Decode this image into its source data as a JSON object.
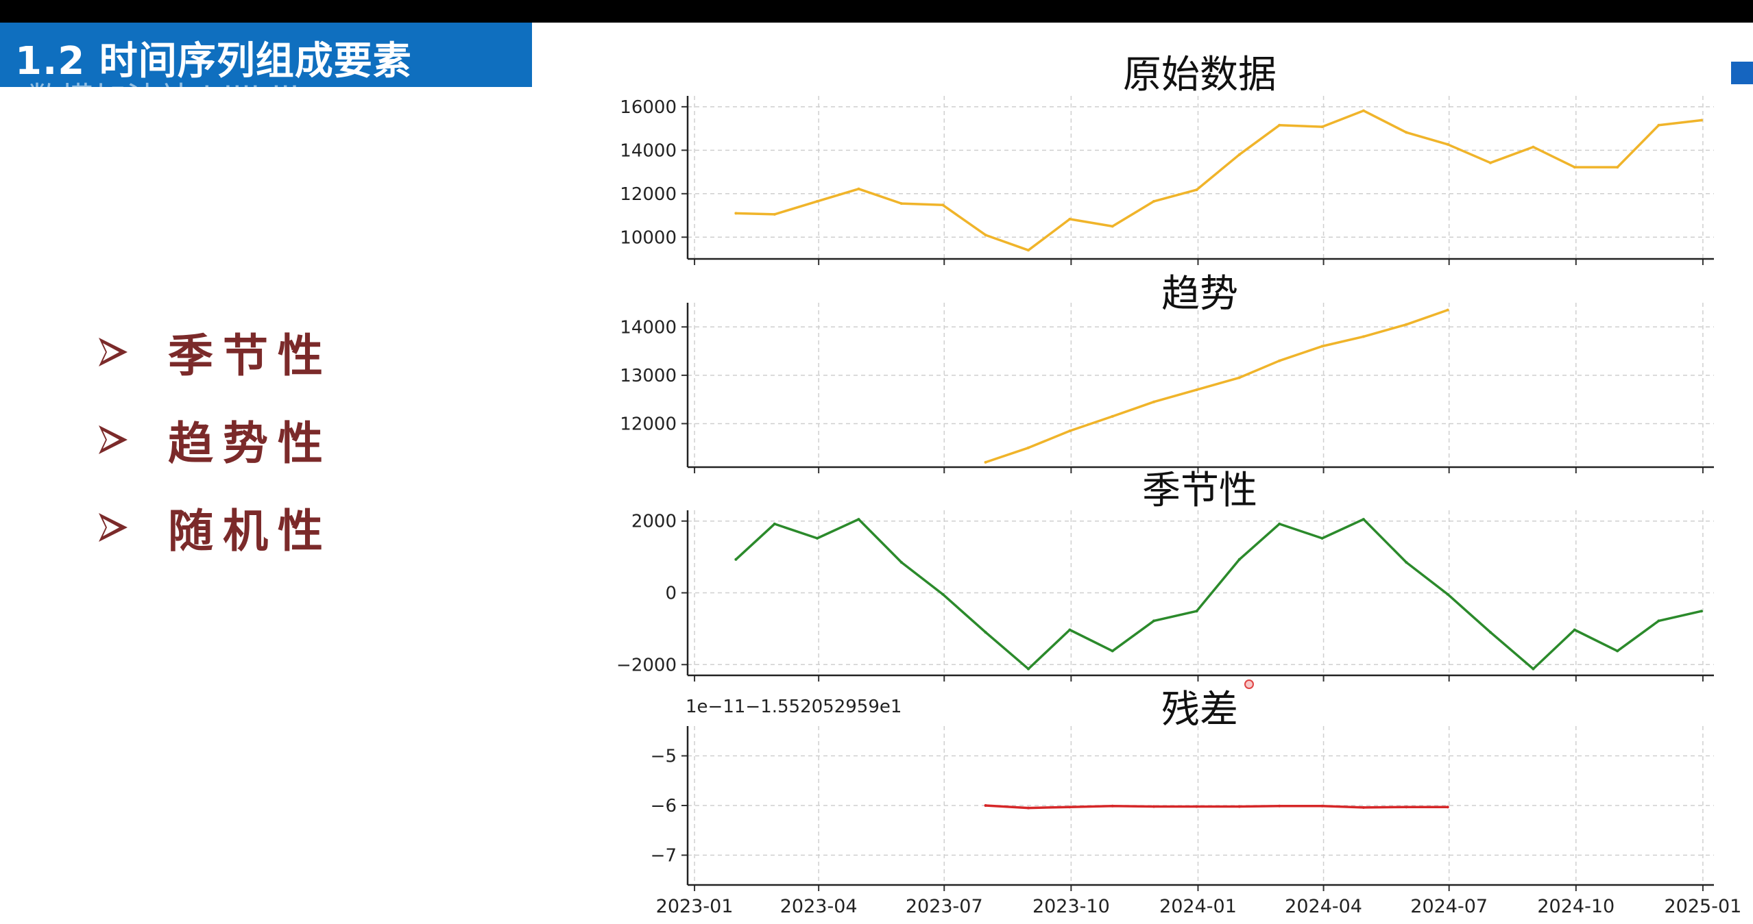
{
  "slide": {
    "title": "1.2 时间序列组成要素",
    "watermark": "数模加油站 bilibili"
  },
  "bullets": [
    {
      "label": "季节性"
    },
    {
      "label": "趋势性"
    },
    {
      "label": "随机性"
    }
  ],
  "colors": {
    "banner": "#0f6fbf",
    "bullet_text": "#7b2a2a",
    "original": "#f0b42a",
    "trend": "#f0b42a",
    "seasonal": "#2b8a2b",
    "residual": "#d62728"
  },
  "chart_data": [
    {
      "type": "line",
      "title": "原始数据",
      "x": [
        "2023-01-31",
        "2023-02-28",
        "2023-03-31",
        "2023-04-30",
        "2023-05-31",
        "2023-06-30",
        "2023-07-31",
        "2023-08-31",
        "2023-09-30",
        "2023-10-31",
        "2023-11-30",
        "2023-12-31",
        "2024-01-31",
        "2024-02-29",
        "2024-03-31",
        "2024-04-30",
        "2024-05-31",
        "2024-06-30",
        "2024-07-31",
        "2024-08-31",
        "2024-09-30",
        "2024-10-31",
        "2024-11-30",
        "2024-12-31"
      ],
      "values": [
        11100,
        11050,
        11650,
        12220,
        11550,
        11480,
        10100,
        9400,
        10830,
        10500,
        11650,
        12180,
        13800,
        15150,
        15080,
        15820,
        14820,
        14270,
        13420,
        14150,
        13220,
        13220,
        15150,
        15380
      ],
      "ylim": [
        9000,
        16500
      ],
      "yticks": [
        "10000",
        "12000",
        "14000",
        "16000"
      ],
      "grid": true
    },
    {
      "type": "line",
      "title": "趋势",
      "x": [
        "2023-07-31",
        "2023-08-31",
        "2023-09-30",
        "2023-10-31",
        "2023-11-30",
        "2023-12-31",
        "2024-01-31",
        "2024-02-29",
        "2024-03-31",
        "2024-04-30",
        "2024-05-31",
        "2024-06-30"
      ],
      "values": [
        11200,
        11500,
        11850,
        12150,
        12450,
        12700,
        12950,
        13300,
        13600,
        13800,
        14050,
        14350
      ],
      "ylim": [
        11100,
        14500
      ],
      "yticks": [
        "12000",
        "13000",
        "14000"
      ],
      "grid": true
    },
    {
      "type": "line",
      "title": "季节性",
      "x": [
        "2023-01-31",
        "2023-02-28",
        "2023-03-31",
        "2023-04-30",
        "2023-05-31",
        "2023-06-30",
        "2023-07-31",
        "2023-08-31",
        "2023-09-30",
        "2023-10-31",
        "2023-11-30",
        "2023-12-31",
        "2024-01-31",
        "2024-02-29",
        "2024-03-31",
        "2024-04-30",
        "2024-05-31",
        "2024-06-30",
        "2024-07-31",
        "2024-08-31",
        "2024-09-30",
        "2024-10-31",
        "2024-11-30",
        "2024-12-31"
      ],
      "values": [
        930,
        1920,
        1520,
        2050,
        850,
        -40,
        -1100,
        -2120,
        -1030,
        -1620,
        -780,
        -510,
        930,
        1920,
        1520,
        2050,
        850,
        -40,
        -1100,
        -2120,
        -1030,
        -1620,
        -780,
        -510
      ],
      "ylim": [
        -2300,
        2300
      ],
      "yticks": [
        "−2000",
        "0",
        "2000"
      ],
      "grid": true
    },
    {
      "type": "line",
      "title": "残差",
      "offset_label": "1e−11−1.552052959e1",
      "x": [
        "2023-07-31",
        "2023-08-31",
        "2023-09-30",
        "2023-10-31",
        "2023-11-30",
        "2023-12-31",
        "2024-01-31",
        "2024-02-29",
        "2024-03-31",
        "2024-04-30",
        "2024-05-31",
        "2024-06-30"
      ],
      "values": [
        -6.0,
        -6.05,
        -6.03,
        -6.01,
        -6.02,
        -6.02,
        -6.02,
        -6.01,
        -6.01,
        -6.04,
        -6.03,
        -6.03
      ],
      "ylim": [
        -7.6,
        -4.4
      ],
      "yticks": [
        "−5",
        "−6",
        "−7"
      ],
      "xticks": [
        "2023-01",
        "2023-04",
        "2023-07",
        "2023-10",
        "2024-01",
        "2024-04",
        "2024-07",
        "2024-10",
        "2025-01"
      ],
      "grid": true
    }
  ]
}
